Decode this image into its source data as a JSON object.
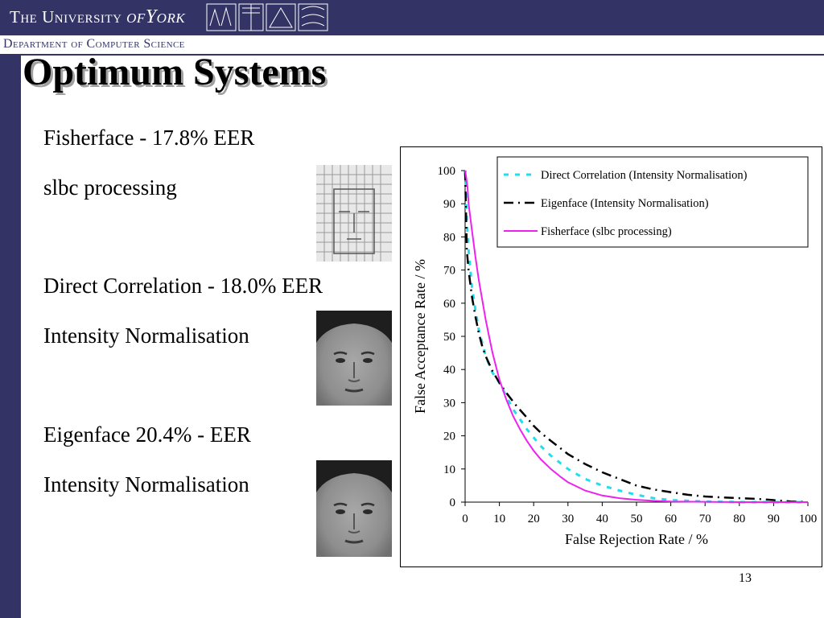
{
  "header": {
    "university_prefix": "The University",
    "university_of": "of",
    "university_york": "York",
    "department": "Department of Computer Science",
    "bar_color": "#333366"
  },
  "slide": {
    "title": "Optimum Systems",
    "page_number": "13",
    "lines": [
      "Fisherface - 17.8% EER",
      "slbc processing",
      "Direct Correlation - 18.0% EER",
      "Intensity Normalisation",
      "Eigenface 20.4% - EER",
      "Intensity Normalisation"
    ]
  },
  "chart_data": {
    "type": "line",
    "xlabel": "False Rejection Rate / %",
    "ylabel": "False Acceptance Rate / %",
    "xlim": [
      0,
      100
    ],
    "ylim": [
      0,
      100
    ],
    "x_ticks": [
      0,
      10,
      20,
      30,
      40,
      50,
      60,
      70,
      80,
      90,
      100
    ],
    "y_ticks": [
      0,
      10,
      20,
      30,
      40,
      50,
      60,
      70,
      80,
      90,
      100
    ],
    "grid": false,
    "legend_position": "top-right",
    "series": [
      {
        "name": "Direct Correlation (Intensity Normalisation)",
        "color": "#22ddee",
        "style": "dotted",
        "x": [
          0,
          0.5,
          1,
          2,
          3,
          4,
          5,
          6,
          8,
          10,
          12,
          14,
          16,
          18,
          20,
          22,
          25,
          30,
          35,
          40,
          45,
          50,
          55,
          60,
          70,
          80,
          90,
          100
        ],
        "y": [
          100,
          85,
          76,
          65,
          58,
          52,
          48,
          44,
          39,
          36,
          32,
          28,
          25,
          22,
          19.5,
          17,
          14,
          10,
          7,
          5,
          3.5,
          2.2,
          1.2,
          0.6,
          0.2,
          0,
          0,
          0
        ]
      },
      {
        "name": "Eigenface (Intensity Normalisation)",
        "color": "#000000",
        "style": "dashdot",
        "x": [
          0,
          0.5,
          1,
          2,
          3,
          4,
          5,
          6,
          8,
          10,
          12,
          15,
          18,
          20,
          22,
          25,
          30,
          35,
          40,
          45,
          50,
          55,
          60,
          65,
          70,
          75,
          80,
          85,
          90,
          95,
          100
        ],
        "y": [
          100,
          76,
          70,
          62,
          56,
          51,
          47,
          44,
          39.5,
          36,
          33,
          29,
          25.5,
          23,
          21,
          18.5,
          14.5,
          11.5,
          9,
          7,
          5,
          3.8,
          3,
          2.2,
          1.7,
          1.4,
          1.2,
          1,
          0.6,
          0.2,
          0
        ]
      },
      {
        "name": "Fisherface (slbc processing)",
        "color": "#ee22ee",
        "style": "solid",
        "x": [
          0,
          0.3,
          0.7,
          1,
          2,
          3,
          4,
          5,
          6,
          7,
          8,
          9,
          10,
          12,
          14,
          16,
          18,
          20,
          22,
          25,
          28,
          30,
          35,
          40,
          45,
          50,
          55,
          60,
          70,
          80,
          100
        ],
        "y": [
          100,
          98,
          95,
          90,
          82,
          74,
          67,
          61,
          55,
          50,
          45,
          41,
          37,
          31,
          26,
          22,
          18.5,
          15.5,
          13,
          10,
          7.5,
          6,
          3.5,
          2,
          1.2,
          0.7,
          0.4,
          0.2,
          0.1,
          0,
          0
        ]
      }
    ]
  }
}
